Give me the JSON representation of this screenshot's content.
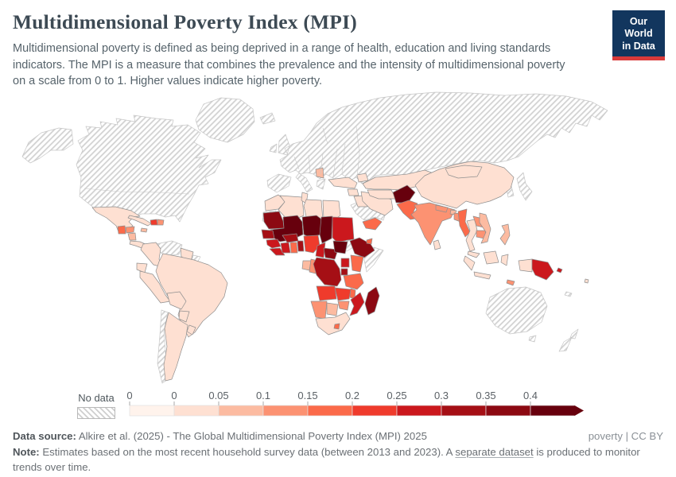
{
  "header": {
    "title": "Multidimensional Poverty Index (MPI)",
    "subtitle": "Multidimensional poverty is defined as being deprived in a range of health, education and living standards indicators. The MPI is a measure that combines the prevalence and the intensity of multidimensional poverty on a scale from 0 to 1. Higher values indicate higher poverty.",
    "logo": {
      "line1": "Our World",
      "line2": "in Data",
      "bg_color": "#12365e",
      "accent_color": "#d93a3a"
    }
  },
  "legend": {
    "no_data_label": "No data",
    "boundary_labels": [
      "0",
      "0",
      "0.05",
      "0.1",
      "0.15",
      "0.2",
      "0.25",
      "0.3",
      "0.35",
      "0.4"
    ]
  },
  "footer": {
    "data_source_label": "Data source:",
    "data_source_text": " Alkire et al. (2025) - The Global Multidimensional Poverty Index (MPI) 2025",
    "rights": "poverty | CC BY",
    "note_label": "Note:",
    "note_before_link": " Estimates based on the most recent household survey data (between 2013 and 2023). A ",
    "note_link": "separate dataset",
    "note_after_link": " is produced to monitor trends over time."
  },
  "chart_data": {
    "type": "heatmap",
    "subtype": "choropleth-world-map",
    "title": "Multidimensional Poverty Index (MPI)",
    "value_range": [
      0,
      0.45
    ],
    "legend_position": "bottom",
    "no_data_style": "diagonal-hatch",
    "bins": [
      {
        "range": "0",
        "color": "#fff3ec"
      },
      {
        "range": "0–0.05",
        "color": "#fee0d2"
      },
      {
        "range": "0.05–0.1",
        "color": "#fcbba1"
      },
      {
        "range": "0.1–0.15",
        "color": "#fc9272"
      },
      {
        "range": "0.15–0.2",
        "color": "#fb6a4a"
      },
      {
        "range": "0.2–0.25",
        "color": "#ef3b2c"
      },
      {
        "range": "0.25–0.3",
        "color": "#cb181d"
      },
      {
        "range": "0.3–0.35",
        "color": "#a50f15"
      },
      {
        "range": "0.35–0.4",
        "color": "#8c0912"
      },
      {
        "range": "0.4+",
        "color": "#67000d"
      }
    ],
    "regions": [
      {
        "id": "north-america",
        "name": "Canada and United States",
        "bin": "no-data"
      },
      {
        "id": "greenland",
        "name": "Greenland",
        "bin": "no-data"
      },
      {
        "id": "europe-russia",
        "name": "Europe and Russia",
        "bin": "no-data"
      },
      {
        "id": "japan-korea",
        "name": "Japan and Korea",
        "bin": "no-data"
      },
      {
        "id": "arabian-peninsula",
        "name": "Saudi Arabia and Oman",
        "bin": "no-data"
      },
      {
        "id": "eritrea",
        "name": "Eritrea",
        "bin": "no-data"
      },
      {
        "id": "somalia",
        "name": "Somalia",
        "bin": "no-data"
      },
      {
        "id": "western-sahara",
        "name": "Western Sahara",
        "bin": "no-data"
      },
      {
        "id": "venezuela",
        "name": "Venezuela",
        "bin": "no-data"
      },
      {
        "id": "french-guiana",
        "name": "French Guiana",
        "bin": "no-data"
      },
      {
        "id": "chile",
        "name": "Chile",
        "bin": "no-data"
      },
      {
        "id": "australia",
        "name": "Australia",
        "bin": "no-data"
      },
      {
        "id": "new-zealand",
        "name": "New Zealand",
        "bin": "no-data"
      },
      {
        "id": "new-caledonia",
        "name": "New Caledonia",
        "bin": "no-data"
      },
      {
        "id": "mexico",
        "name": "Mexico",
        "bin": "0–0.05"
      },
      {
        "id": "guatemala",
        "name": "Guatemala",
        "bin": "0.15–0.2"
      },
      {
        "id": "honduras",
        "name": "Honduras",
        "bin": "0.1–0.15"
      },
      {
        "id": "nicaragua",
        "name": "Nicaragua",
        "bin": "0.05–0.1"
      },
      {
        "id": "costa-rica-panama",
        "name": "Costa Rica and Panama",
        "bin": "0–0.05"
      },
      {
        "id": "cuba",
        "name": "Cuba",
        "bin": "0–0.05"
      },
      {
        "id": "haiti",
        "name": "Haiti",
        "bin": "0.2–0.25"
      },
      {
        "id": "dominican-republic",
        "name": "Dominican Republic",
        "bin": "0.1–0.15"
      },
      {
        "id": "jamaica",
        "name": "Jamaica",
        "bin": "0.05–0.1"
      },
      {
        "id": "colombia",
        "name": "Colombia",
        "bin": "0–0.05"
      },
      {
        "id": "ecuador",
        "name": "Ecuador",
        "bin": "0–0.05"
      },
      {
        "id": "peru",
        "name": "Peru",
        "bin": "0–0.05"
      },
      {
        "id": "guyana-suriname",
        "name": "Guyana and Suriname",
        "bin": "0–0.05"
      },
      {
        "id": "brazil",
        "name": "Brazil",
        "bin": "0–0.05"
      },
      {
        "id": "bolivia",
        "name": "Bolivia",
        "bin": "0–0.05"
      },
      {
        "id": "paraguay",
        "name": "Paraguay",
        "bin": "0–0.05"
      },
      {
        "id": "uruguay",
        "name": "Uruguay",
        "bin": "0–0.05"
      },
      {
        "id": "argentina",
        "name": "Argentina",
        "bin": "0–0.05"
      },
      {
        "id": "balkans",
        "name": "Albania and North Macedonia",
        "bin": "0.05–0.1"
      },
      {
        "id": "morocco",
        "name": "Morocco",
        "bin": "0–0.05"
      },
      {
        "id": "algeria",
        "name": "Algeria",
        "bin": "0–0.05"
      },
      {
        "id": "tunisia",
        "name": "Tunisia",
        "bin": "0–0.05"
      },
      {
        "id": "libya",
        "name": "Libya",
        "bin": "0–0.05"
      },
      {
        "id": "egypt",
        "name": "Egypt",
        "bin": "0–0.05"
      },
      {
        "id": "mauritania",
        "name": "Mauritania",
        "bin": "0.35–0.4"
      },
      {
        "id": "mali",
        "name": "Mali",
        "bin": "0.4+"
      },
      {
        "id": "niger",
        "name": "Niger",
        "bin": "0.4+"
      },
      {
        "id": "chad",
        "name": "Chad",
        "bin": "0.4+"
      },
      {
        "id": "sudan",
        "name": "Sudan",
        "bin": "0.25–0.3"
      },
      {
        "id": "ethiopia",
        "name": "Ethiopia",
        "bin": "0.35–0.4"
      },
      {
        "id": "djibouti",
        "name": "Djibouti",
        "bin": "0.15–0.2"
      },
      {
        "id": "senegal",
        "name": "Senegal",
        "bin": "0.3–0.35"
      },
      {
        "id": "guinea",
        "name": "Guinea",
        "bin": "0.25–0.3"
      },
      {
        "id": "sierra-leone-liberia",
        "name": "Sierra Leone and Liberia",
        "bin": "0.25–0.3"
      },
      {
        "id": "ivory-coast",
        "name": "Cote d'Ivoire",
        "bin": "0.25–0.3"
      },
      {
        "id": "ghana",
        "name": "Ghana",
        "bin": "0.15–0.2"
      },
      {
        "id": "togo-benin",
        "name": "Togo and Benin",
        "bin": "0.3–0.35"
      },
      {
        "id": "burkina-faso",
        "name": "Burkina Faso",
        "bin": "0.3–0.35"
      },
      {
        "id": "nigeria",
        "name": "Nigeria",
        "bin": "0.2–0.25"
      },
      {
        "id": "cameroon",
        "name": "Cameroon",
        "bin": "0.25–0.3"
      },
      {
        "id": "car",
        "name": "Central African Republic",
        "bin": "0.35–0.4"
      },
      {
        "id": "south-sudan",
        "name": "South Sudan",
        "bin": "0.4+"
      },
      {
        "id": "gabon",
        "name": "Gabon",
        "bin": "0.05–0.1"
      },
      {
        "id": "congo",
        "name": "Congo",
        "bin": "0.1–0.15"
      },
      {
        "id": "drc",
        "name": "Democratic Republic of Congo",
        "bin": "0.3–0.35"
      },
      {
        "id": "uganda",
        "name": "Uganda",
        "bin": "0.25–0.3"
      },
      {
        "id": "kenya",
        "name": "Kenya",
        "bin": "0.15–0.2"
      },
      {
        "id": "rwanda-burundi",
        "name": "Rwanda and Burundi",
        "bin": "0.3–0.35"
      },
      {
        "id": "tanzania",
        "name": "Tanzania",
        "bin": "0.15–0.2"
      },
      {
        "id": "angola",
        "name": "Angola",
        "bin": "0.2–0.25"
      },
      {
        "id": "zambia",
        "name": "Zambia",
        "bin": "0.2–0.25"
      },
      {
        "id": "malawi",
        "name": "Malawi",
        "bin": "0.15–0.2"
      },
      {
        "id": "mozambique",
        "name": "Mozambique",
        "bin": "0.25–0.3"
      },
      {
        "id": "zimbabwe",
        "name": "Zimbabwe",
        "bin": "0.1–0.15"
      },
      {
        "id": "namibia",
        "name": "Namibia",
        "bin": "0.1–0.15"
      },
      {
        "id": "botswana",
        "name": "Botswana",
        "bin": "0.05–0.1"
      },
      {
        "id": "south-africa",
        "name": "South Africa",
        "bin": "0–0.05"
      },
      {
        "id": "lesotho",
        "name": "Lesotho",
        "bin": "0.15–0.2"
      },
      {
        "id": "madagascar",
        "name": "Madagascar",
        "bin": "0.35–0.4"
      },
      {
        "id": "turkey",
        "name": "Turkey",
        "bin": "0–0.05"
      },
      {
        "id": "caucasus",
        "name": "Georgia, Armenia and Azerbaijan",
        "bin": "0–0.05"
      },
      {
        "id": "syria",
        "name": "Syria and Jordan",
        "bin": "0–0.05"
      },
      {
        "id": "iraq",
        "name": "Iraq",
        "bin": "0–0.05"
      },
      {
        "id": "iran",
        "name": "Iran",
        "bin": "0–0.05"
      },
      {
        "id": "yemen",
        "name": "Yemen",
        "bin": "0.15–0.2"
      },
      {
        "id": "kazakhstan",
        "name": "Kazakhstan",
        "bin": "0–0.05"
      },
      {
        "id": "uzbek-turkmen",
        "name": "Uzbekistan and Turkmenistan",
        "bin": "0–0.05"
      },
      {
        "id": "kyrgyz-tajik",
        "name": "Kyrgyzstan and Tajikistan",
        "bin": "0.05–0.1"
      },
      {
        "id": "afghanistan",
        "name": "Afghanistan",
        "bin": "0.4+"
      },
      {
        "id": "pakistan",
        "name": "Pakistan",
        "bin": "0.15–0.2"
      },
      {
        "id": "india",
        "name": "India",
        "bin": "0.1–0.15"
      },
      {
        "id": "nepal",
        "name": "Nepal",
        "bin": "0.1–0.15"
      },
      {
        "id": "bhutan",
        "name": "Bhutan",
        "bin": "0.05–0.1"
      },
      {
        "id": "bangladesh",
        "name": "Bangladesh",
        "bin": "0.1–0.15"
      },
      {
        "id": "sri-lanka",
        "name": "Sri Lanka",
        "bin": "0–0.05"
      },
      {
        "id": "china",
        "name": "China",
        "bin": "0–0.05"
      },
      {
        "id": "mongolia",
        "name": "Mongolia",
        "bin": "0–0.05"
      },
      {
        "id": "myanmar",
        "name": "Myanmar",
        "bin": "0.15–0.2"
      },
      {
        "id": "thailand",
        "name": "Thailand",
        "bin": "0–0.05"
      },
      {
        "id": "laos",
        "name": "Laos",
        "bin": "0.1–0.15"
      },
      {
        "id": "cambodia",
        "name": "Cambodia",
        "bin": "0.1–0.15"
      },
      {
        "id": "vietnam",
        "name": "Vietnam",
        "bin": "0.05–0.1"
      },
      {
        "id": "malaysia",
        "name": "Malaysia",
        "bin": "0–0.05"
      },
      {
        "id": "indonesia",
        "name": "Indonesia",
        "bin": "0–0.05"
      },
      {
        "id": "philippines",
        "name": "Philippines",
        "bin": "0.05–0.1"
      },
      {
        "id": "timor",
        "name": "Timor-Leste",
        "bin": "0.1–0.15"
      },
      {
        "id": "papua-new-guinea",
        "name": "Papua New Guinea",
        "bin": "0.25–0.3"
      },
      {
        "id": "solomon",
        "name": "Solomon Islands",
        "bin": "0.25–0.3"
      },
      {
        "id": "fiji",
        "name": "Fiji",
        "bin": "0–0.05"
      }
    ]
  }
}
